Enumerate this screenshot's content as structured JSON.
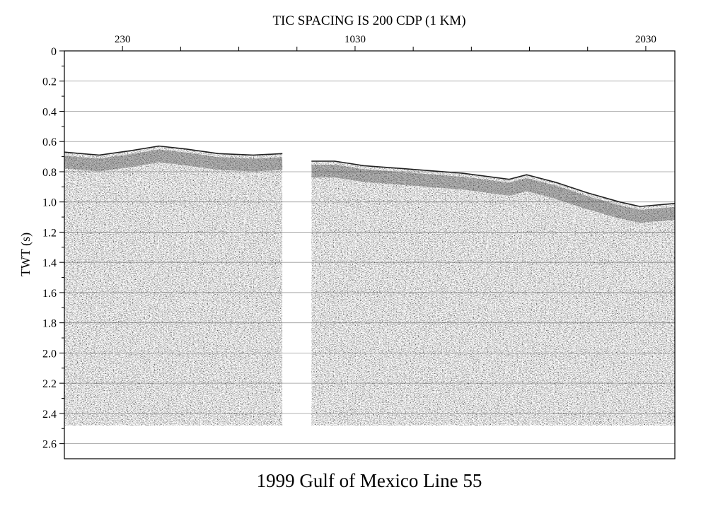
{
  "chart_data": {
    "type": "seismic-section",
    "title": "1999 Gulf of Mexico Line 55",
    "top_label": "TIC SPACING IS 200 CDP (1 KM)",
    "ylabel": "TWT (s)",
    "xlabel": "",
    "xlim": [
      30,
      2130
    ],
    "ylim": [
      0,
      2.7
    ],
    "y_inverted": true,
    "x_tick_labels": [
      {
        "value": 230,
        "label": "230"
      },
      {
        "value": 1030,
        "label": "1030"
      },
      {
        "value": 2030,
        "label": "2030"
      }
    ],
    "x_minor_ticks": [
      430,
      630,
      830,
      1230,
      1430,
      1630,
      1830
    ],
    "y_ticks": [
      {
        "value": 0,
        "label": "0"
      },
      {
        "value": 0.2,
        "label": "0.2"
      },
      {
        "value": 0.4,
        "label": "0.4"
      },
      {
        "value": 0.6,
        "label": "0.6"
      },
      {
        "value": 0.8,
        "label": "0.8"
      },
      {
        "value": 1.0,
        "label": "1.0"
      },
      {
        "value": 1.2,
        "label": "1.2"
      },
      {
        "value": 1.4,
        "label": "1.4"
      },
      {
        "value": 1.6,
        "label": "1.6"
      },
      {
        "value": 1.8,
        "label": "1.8"
      },
      {
        "value": 2.0,
        "label": "2.0"
      },
      {
        "value": 2.2,
        "label": "2.2"
      },
      {
        "value": 2.4,
        "label": "2.4"
      },
      {
        "value": 2.6,
        "label": "2.6"
      }
    ],
    "grid": "horizontal",
    "data_end_time": 2.48,
    "panels": [
      {
        "name": "",
        "cdp_range": [
          30,
          780
        ],
        "seafloor": [
          {
            "cdp": 30,
            "twt": 0.67
          },
          {
            "cdp": 150,
            "twt": 0.69
          },
          {
            "cdp": 260,
            "twt": 0.66
          },
          {
            "cdp": 355,
            "twt": 0.63
          },
          {
            "cdp": 450,
            "twt": 0.65
          },
          {
            "cdp": 560,
            "twt": 0.68
          },
          {
            "cdp": 680,
            "twt": 0.69
          },
          {
            "cdp": 780,
            "twt": 0.68
          }
        ]
      },
      {
        "name": "",
        "cdp_range": [
          880,
          2130
        ],
        "seafloor": [
          {
            "cdp": 880,
            "twt": 0.73
          },
          {
            "cdp": 960,
            "twt": 0.73
          },
          {
            "cdp": 1060,
            "twt": 0.76
          },
          {
            "cdp": 1200,
            "twt": 0.78
          },
          {
            "cdp": 1400,
            "twt": 0.81
          },
          {
            "cdp": 1560,
            "twt": 0.85
          },
          {
            "cdp": 1620,
            "twt": 0.82
          },
          {
            "cdp": 1720,
            "twt": 0.87
          },
          {
            "cdp": 1830,
            "twt": 0.94
          },
          {
            "cdp": 1940,
            "twt": 1.0
          },
          {
            "cdp": 2010,
            "twt": 1.03
          },
          {
            "cdp": 2130,
            "twt": 1.01
          }
        ]
      }
    ]
  }
}
